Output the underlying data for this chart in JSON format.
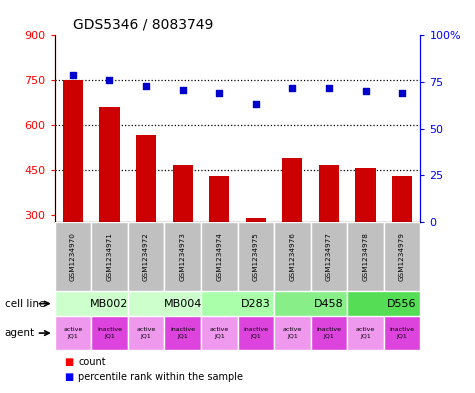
{
  "title": "GDS5346 / 8083749",
  "samples": [
    "GSM1234970",
    "GSM1234971",
    "GSM1234972",
    "GSM1234973",
    "GSM1234974",
    "GSM1234975",
    "GSM1234976",
    "GSM1234977",
    "GSM1234978",
    "GSM1234979"
  ],
  "bar_values": [
    750,
    660,
    565,
    465,
    430,
    290,
    490,
    465,
    455,
    430
  ],
  "percentile_values": [
    79,
    76,
    73,
    71,
    69,
    63,
    72,
    72,
    70,
    69
  ],
  "ylim_left": [
    275,
    900
  ],
  "ylim_right": [
    0,
    100
  ],
  "yticks_left": [
    300,
    450,
    600,
    750,
    900
  ],
  "yticks_right": [
    0,
    25,
    50,
    75,
    100
  ],
  "bar_color": "#cc0000",
  "dot_color": "#0000cc",
  "cell_lines": [
    {
      "label": "MB002",
      "start": 0,
      "end": 2,
      "color": "#ccffcc"
    },
    {
      "label": "MB004",
      "start": 2,
      "end": 4,
      "color": "#ccffcc"
    },
    {
      "label": "D283",
      "start": 4,
      "end": 6,
      "color": "#aaffaa"
    },
    {
      "label": "D458",
      "start": 6,
      "end": 8,
      "color": "#88ee88"
    },
    {
      "label": "D556",
      "start": 8,
      "end": 10,
      "color": "#55dd55"
    }
  ],
  "agent_colors": [
    "#ee99ee",
    "#dd44dd"
  ],
  "dotted_line_values": [
    750,
    600,
    450
  ],
  "sample_box_color": "#bbbbbb",
  "background_color": "#ffffff"
}
